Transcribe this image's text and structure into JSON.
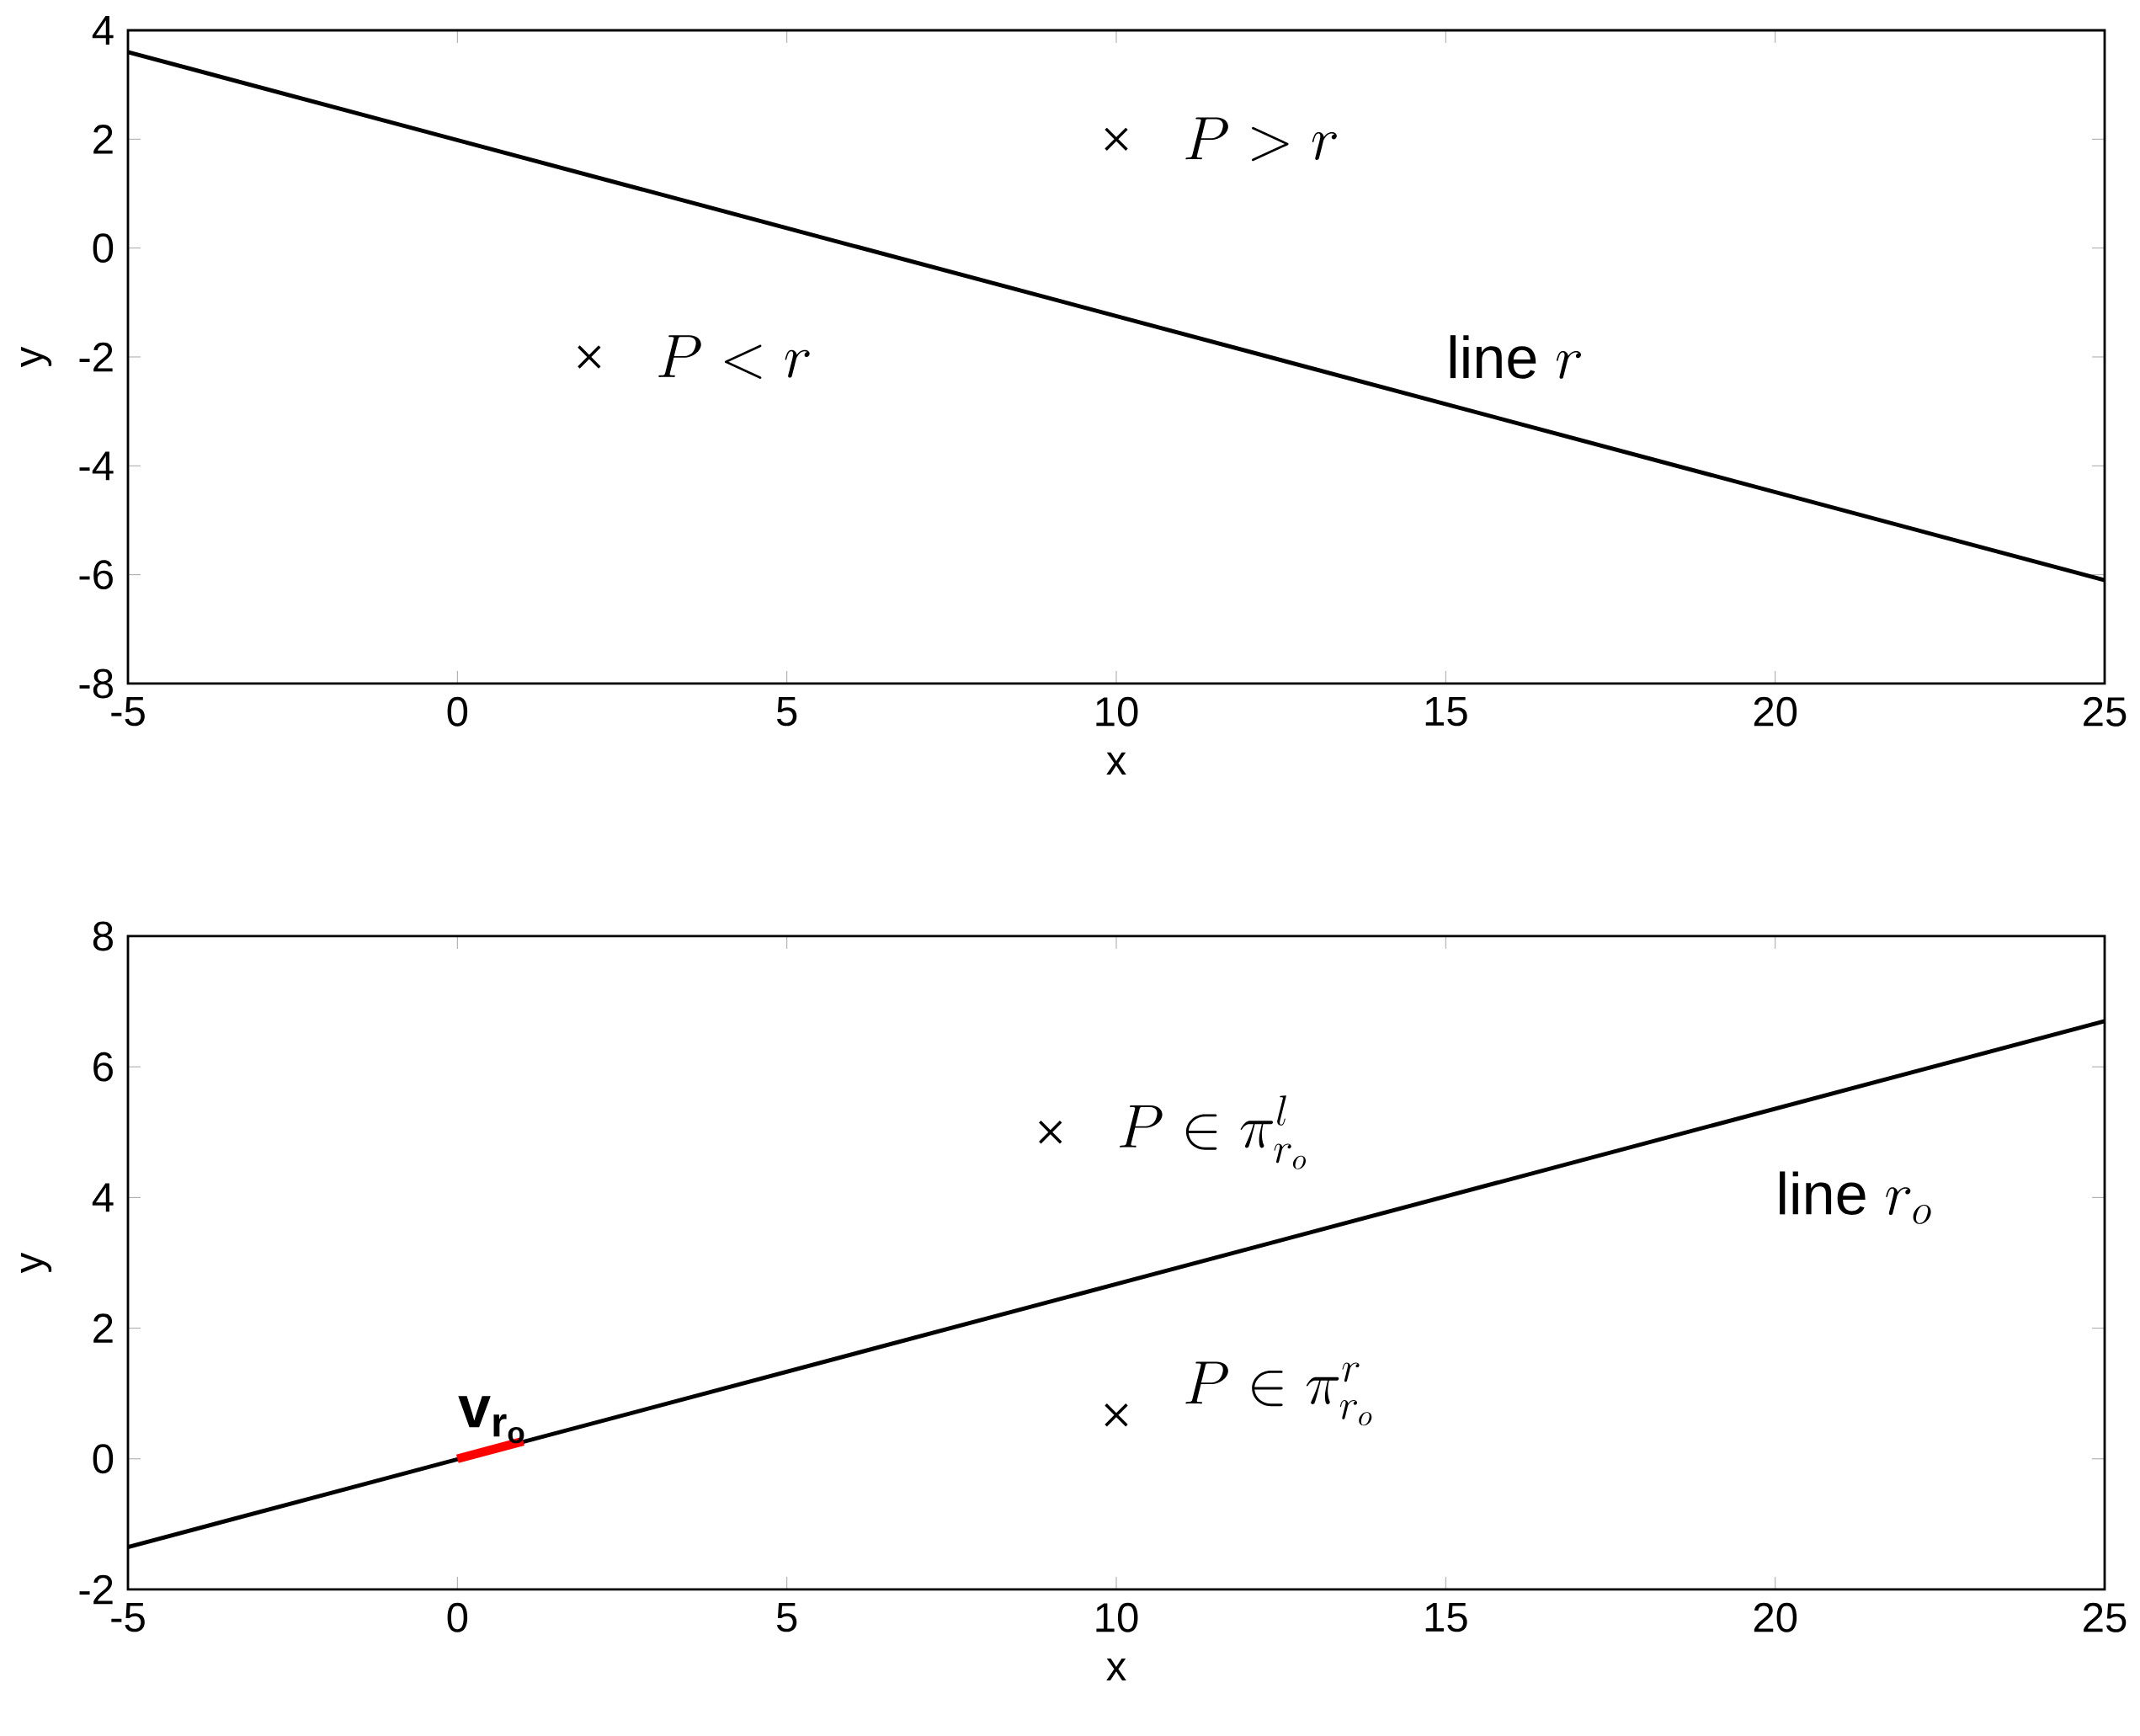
{
  "chart_data": [
    {
      "type": "line",
      "xlabel": "x",
      "ylabel": "y",
      "xlim": [
        -5,
        25
      ],
      "ylim": [
        -8,
        4
      ],
      "xticks": [
        -5,
        0,
        5,
        10,
        15,
        20,
        25
      ],
      "yticks": [
        -8,
        -6,
        -4,
        -2,
        0,
        2,
        4
      ],
      "series": [
        {
          "color": "#000000",
          "x": [
            -5,
            25
          ],
          "values": [
            3.6,
            -6.1
          ]
        },
        {
          "type": "scatter",
          "color": "#000000",
          "marker": "cross",
          "x": [
            2,
            10
          ],
          "values": [
            -2,
            2
          ]
        }
      ],
      "annotations": [
        "P<r",
        "P>r",
        "\\mathrm{line}\\ r"
      ]
    },
    {
      "type": "line",
      "xlabel": "x",
      "ylabel": "y",
      "xlim": [
        -5,
        25
      ],
      "ylim": [
        -2,
        8
      ],
      "xticks": [
        -5,
        0,
        5,
        10,
        15,
        20,
        25
      ],
      "yticks": [
        -2,
        0,
        2,
        4,
        6,
        8
      ],
      "series": [
        {
          "color": "#000000",
          "x": [
            -5,
            25
          ],
          "values": [
            -1.35,
            6.7
          ]
        },
        {
          "color": "#ff0000",
          "x": [
            0,
            1
          ],
          "values": [
            0,
            0.27
          ]
        },
        {
          "type": "scatter",
          "color": "#000000",
          "marker": "cross",
          "x": [
            9,
            10
          ],
          "values": [
            5,
            0.67
          ]
        }
      ],
      "annotations": [
        "P \\in \\pi^{l}_{r_o}",
        "P \\in \\pi^{r}_{r_o}",
        "\\mathrm{line}\\ r_o",
        "\\mathbf{v_{r_o}}"
      ]
    }
  ]
}
